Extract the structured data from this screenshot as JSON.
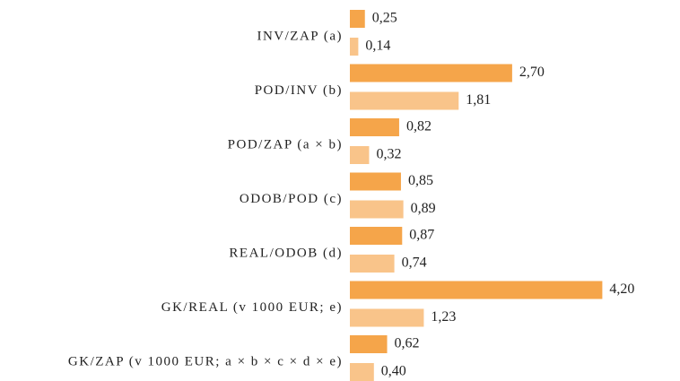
{
  "chart_data": {
    "type": "bar",
    "orientation": "horizontal",
    "categories": [
      "INV/ZAP (a)",
      "POD/INV (b)",
      "POD/ZAP (a × b)",
      "ODOB/POD (c)",
      "REAL/ODOB (d)",
      "GK/REAL (v 1000 EUR; e)",
      "GK/ZAP (v 1000 EUR; a × b × c × d × e)"
    ],
    "series": [
      {
        "color": "#f5a54a",
        "values": [
          0.25,
          2.7,
          0.82,
          0.85,
          0.87,
          4.2,
          0.62
        ],
        "value_labels": [
          "0,25",
          "2,70",
          "0,82",
          "0,85",
          "0,87",
          "4,20",
          "0,62"
        ]
      },
      {
        "color": "#f9c48a",
        "values": [
          0.14,
          1.81,
          0.32,
          0.89,
          0.74,
          1.23,
          0.4
        ],
        "value_labels": [
          "0,14",
          "1,81",
          "0,32",
          "0,89",
          "0,74",
          "1,23",
          "0,40"
        ]
      }
    ]
  }
}
